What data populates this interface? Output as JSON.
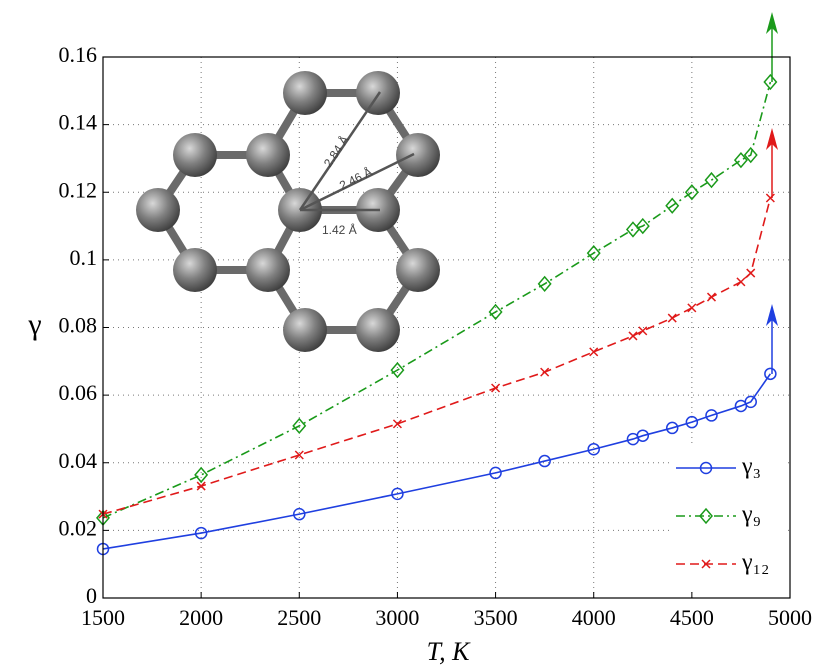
{
  "chart_data": {
    "type": "line",
    "x_label": "T,  K",
    "y_label": "γ",
    "x": [
      1500,
      2000,
      2500,
      3000,
      3500,
      3750,
      4000,
      4200,
      4250,
      4400,
      4500,
      4600,
      4750,
      4800,
      4900
    ],
    "series": [
      {
        "name": "γ₃",
        "color": "#1f3fe0",
        "marker": "circle",
        "dash": "solid",
        "values": [
          0.0145,
          0.0192,
          0.0248,
          0.0308,
          0.037,
          0.0405,
          0.044,
          0.047,
          0.048,
          0.0503,
          0.052,
          0.054,
          0.0568,
          0.058,
          0.0663
        ]
      },
      {
        "name": "γ₉",
        "color": "#1a9a1a",
        "marker": "diamond",
        "dash": "dashdot",
        "values": [
          0.0237,
          0.0364,
          0.0509,
          0.0674,
          0.0846,
          0.0929,
          0.102,
          0.109,
          0.11,
          0.116,
          0.12,
          0.1236,
          0.1295,
          0.131,
          0.1526
        ]
      },
      {
        "name": "γ₁₂",
        "color": "#e01a1a",
        "marker": "x",
        "dash": "dashed",
        "values": [
          0.0248,
          0.0331,
          0.0423,
          0.0515,
          0.0621,
          0.0668,
          0.0728,
          0.0775,
          0.079,
          0.0828,
          0.0858,
          0.089,
          0.0935,
          0.0961,
          0.1183
        ]
      }
    ],
    "xlim": [
      1500,
      5000
    ],
    "xticks": [
      1500,
      2000,
      2500,
      3000,
      3500,
      4000,
      4500,
      5000
    ],
    "ylim": [
      0,
      0.16
    ],
    "yticks": [
      0,
      0.02,
      0.04,
      0.06,
      0.08,
      0.1,
      0.12,
      0.14,
      0.16
    ],
    "grid": true,
    "legend": "lower right",
    "annotations": [
      "2.84 Å",
      "2.46 Å",
      "1.42 Å"
    ]
  }
}
